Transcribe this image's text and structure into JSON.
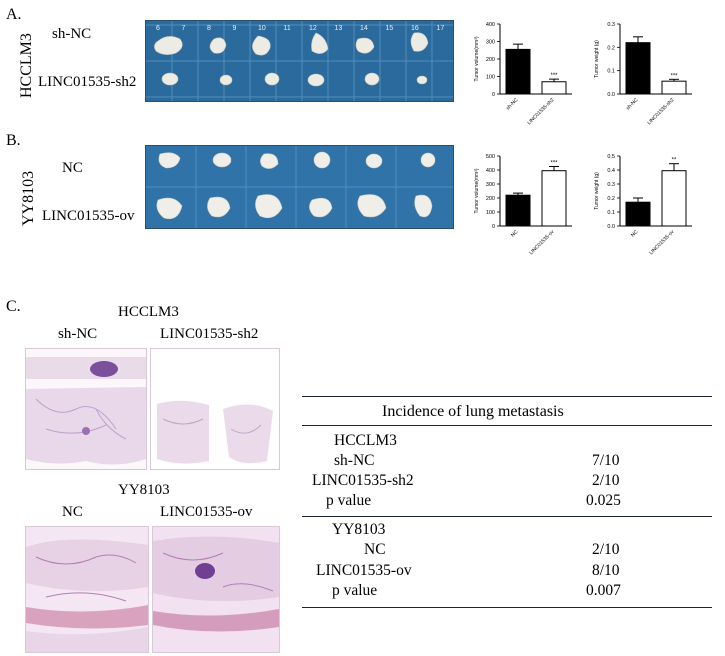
{
  "panelA": {
    "letter": "A.",
    "cell_line": "HCCLM3",
    "row1": "sh-NC",
    "row2": "LINC01535-sh2",
    "ruler_numbers": [
      "6",
      "7",
      "8",
      "9",
      "10",
      "11",
      "12",
      "13",
      "14",
      "15",
      "16",
      "17"
    ]
  },
  "panelB": {
    "letter": "B.",
    "cell_line": "YY8103",
    "row1": "NC",
    "row2": "LINC01535-ov"
  },
  "panelC": {
    "letter": "C.",
    "group1": {
      "title": "HCCLM3",
      "left": "sh-NC",
      "right": "LINC01535-sh2"
    },
    "group2": {
      "title": "YY8103",
      "left": "NC",
      "right": "LINC01535-ov"
    }
  },
  "table": {
    "title": "Incidence of lung metastasis",
    "block1": {
      "header": "HCCLM3",
      "rows": [
        {
          "label": "sh-NC",
          "value": "7/10"
        },
        {
          "label": "LINC01535-sh2",
          "value": "2/10"
        },
        {
          "label": "p value",
          "value": "0.025"
        }
      ]
    },
    "block2": {
      "header": "YY8103",
      "rows": [
        {
          "label": "NC",
          "value": "2/10"
        },
        {
          "label": "LINC01535-ov",
          "value": "8/10"
        },
        {
          "label": "p value",
          "value": "0.007"
        }
      ]
    }
  },
  "chart_data": [
    {
      "type": "bar",
      "ylabel": "Tumor volume(mm³)",
      "ylim": [
        0,
        400
      ],
      "yticks": [
        0,
        100,
        200,
        300,
        400
      ],
      "categories": [
        "sh-NC",
        "LINC01535-sh2"
      ],
      "values": [
        255,
        70
      ],
      "errors": [
        30,
        15
      ],
      "colors": [
        "#000000",
        "#ffffff"
      ],
      "significance": "***"
    },
    {
      "type": "bar",
      "ylabel": "Tumor weight (g)",
      "ylim": [
        0,
        0.3
      ],
      "yticks": [
        0.0,
        0.1,
        0.2,
        0.3
      ],
      "categories": [
        "sh-NC",
        "LINC01535-sh2"
      ],
      "values": [
        0.22,
        0.055
      ],
      "errors": [
        0.025,
        0.008
      ],
      "colors": [
        "#000000",
        "#ffffff"
      ],
      "significance": "***"
    },
    {
      "type": "bar",
      "ylabel": "Tumor volume(mm³)",
      "ylim": [
        0,
        500
      ],
      "yticks": [
        0,
        100,
        200,
        300,
        400,
        500
      ],
      "categories": [
        "NC",
        "LINC01535-ov"
      ],
      "values": [
        220,
        395
      ],
      "errors": [
        15,
        30
      ],
      "colors": [
        "#000000",
        "#ffffff"
      ],
      "significance": "***"
    },
    {
      "type": "bar",
      "ylabel": "Tumor weight (g)",
      "ylim": [
        0,
        0.5
      ],
      "yticks": [
        0.0,
        0.1,
        0.2,
        0.3,
        0.4,
        0.5
      ],
      "categories": [
        "NC",
        "LINC01535-ov"
      ],
      "values": [
        0.17,
        0.395
      ],
      "errors": [
        0.03,
        0.05
      ],
      "colors": [
        "#000000",
        "#ffffff"
      ],
      "significance": "**"
    }
  ]
}
